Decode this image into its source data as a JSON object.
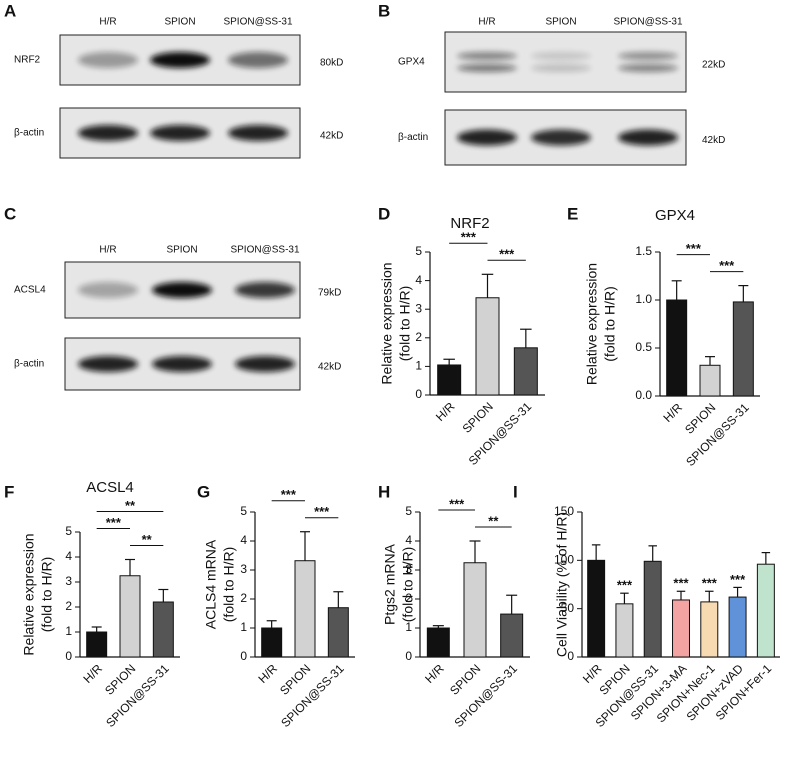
{
  "blots": [
    {
      "panel": "A",
      "columns": [
        "H/R",
        "SPION",
        "SPION@SS-31"
      ],
      "rows": [
        {
          "label": "NRF2",
          "size": "80kD"
        },
        {
          "label": "β-actin",
          "size": "42kD"
        }
      ]
    },
    {
      "panel": "B",
      "columns": [
        "H/R",
        "SPION",
        "SPION@SS-31"
      ],
      "rows": [
        {
          "label": "GPX4",
          "size": "22kD"
        },
        {
          "label": "β-actin",
          "size": "42kD"
        }
      ]
    },
    {
      "panel": "C",
      "columns": [
        "H/R",
        "SPION",
        "SPION@SS-31"
      ],
      "rows": [
        {
          "label": "ACSL4",
          "size": "79kD"
        },
        {
          "label": "β-actin",
          "size": "42kD"
        }
      ]
    }
  ],
  "chart_data": [
    {
      "type": "bar",
      "panel": "D",
      "title": "NRF2",
      "y_label": [
        "Relative expression",
        "(fold to H/R)"
      ],
      "categories": [
        "H/R",
        "SPION",
        "SPION@SS-31"
      ],
      "values": [
        1.05,
        3.4,
        1.65
      ],
      "errors": [
        0.2,
        0.82,
        0.65
      ],
      "colors": [
        "#111111",
        "#d2d2d2",
        "#555555"
      ],
      "ylim": [
        0,
        5
      ],
      "yticks": [
        0,
        1,
        2,
        3,
        4,
        5
      ],
      "annotations": [
        {
          "label": "***",
          "between": [
            1,
            2
          ]
        },
        {
          "label": "***",
          "between": [
            0,
            1
          ]
        }
      ]
    },
    {
      "type": "bar",
      "panel": "E",
      "title": "GPX4",
      "y_label": [
        "Relative expression",
        "(fold to H/R)"
      ],
      "categories": [
        "H/R",
        "SPION",
        "SPION@SS-31"
      ],
      "values": [
        1.0,
        0.32,
        0.98
      ],
      "errors": [
        0.2,
        0.09,
        0.17
      ],
      "colors": [
        "#111111",
        "#d2d2d2",
        "#555555"
      ],
      "ylim": [
        0,
        1.5
      ],
      "yticks": [
        {
          "value": 0,
          "label": "0.0"
        },
        0.5,
        {
          "value": 1,
          "label": "1.0"
        },
        1.5
      ],
      "annotations": [
        {
          "label": "***",
          "between": [
            1,
            2
          ]
        },
        {
          "label": "***",
          "between": [
            0,
            1
          ]
        }
      ]
    },
    {
      "type": "bar",
      "panel": "F",
      "title": "ACSL4",
      "y_label": [
        "Relative expression",
        "(fold to H/R)"
      ],
      "categories": [
        "H/R",
        "SPION",
        "SPION@SS-31"
      ],
      "values": [
        1.0,
        3.25,
        2.2
      ],
      "errors": [
        0.2,
        0.65,
        0.5
      ],
      "colors": [
        "#111111",
        "#d2d2d2",
        "#555555"
      ],
      "ylim": [
        0,
        5
      ],
      "yticks": [
        0,
        1,
        2,
        3,
        4,
        5
      ],
      "annotations": [
        {
          "label": "**",
          "between": [
            1,
            2
          ]
        },
        {
          "label": "***",
          "between": [
            0,
            1
          ]
        },
        {
          "label": "**",
          "between": [
            0,
            2
          ]
        }
      ]
    },
    {
      "type": "bar",
      "panel": "G",
      "y_label": [
        "ACLS4 mRNA",
        "(fold to H/R)"
      ],
      "categories": [
        "H/R",
        "SPION",
        "SPION@SS-31"
      ],
      "values": [
        1.0,
        3.32,
        1.7
      ],
      "errors": [
        0.25,
        1.0,
        0.55
      ],
      "colors": [
        "#111111",
        "#d2d2d2",
        "#555555"
      ],
      "ylim": [
        0,
        5
      ],
      "yticks": [
        0,
        1,
        2,
        3,
        4,
        5
      ],
      "annotations": [
        {
          "label": "***",
          "between": [
            1,
            2
          ]
        },
        {
          "label": "***",
          "between": [
            0,
            1
          ]
        }
      ]
    },
    {
      "type": "bar",
      "panel": "H",
      "y_label": [
        "Ptgs2 mRNA",
        "(fold to H/R)"
      ],
      "categories": [
        "H/R",
        "SPION",
        "SPION@SS-31"
      ],
      "values": [
        1.0,
        3.25,
        1.48
      ],
      "errors": [
        0.08,
        0.75,
        0.65
      ],
      "colors": [
        "#111111",
        "#d2d2d2",
        "#555555"
      ],
      "ylim": [
        0,
        5
      ],
      "yticks": [
        0,
        1,
        2,
        3,
        4,
        5
      ],
      "annotations": [
        {
          "label": "**",
          "between": [
            1,
            2
          ]
        },
        {
          "label": "***",
          "between": [
            0,
            1
          ]
        }
      ]
    },
    {
      "type": "bar",
      "panel": "I",
      "y_label": [
        "Cell Viability (% of H/R)"
      ],
      "categories": [
        "H/R",
        "SPION",
        "SPION@SS-31",
        "SPION+3-MA",
        "SPION+Nec-1",
        "SPION+zVAD",
        "SPION+Fer-1"
      ],
      "values": [
        100,
        55,
        99,
        59,
        57,
        62,
        96
      ],
      "errors": [
        16,
        11,
        16,
        9,
        11,
        10,
        12
      ],
      "colors": [
        "#111111",
        "#d2d2d2",
        "#555555",
        "#f4a3a3",
        "#f8dab2",
        "#5f92d8",
        "#bfe3cc"
      ],
      "ylim": [
        0,
        150
      ],
      "yticks": [
        0,
        50,
        100,
        150
      ],
      "annotations": [
        {
          "label": "***",
          "bar": 1
        },
        {
          "label": "***",
          "bar": 3
        },
        {
          "label": "***",
          "bar": 4
        },
        {
          "label": "***",
          "bar": 5
        }
      ]
    }
  ]
}
